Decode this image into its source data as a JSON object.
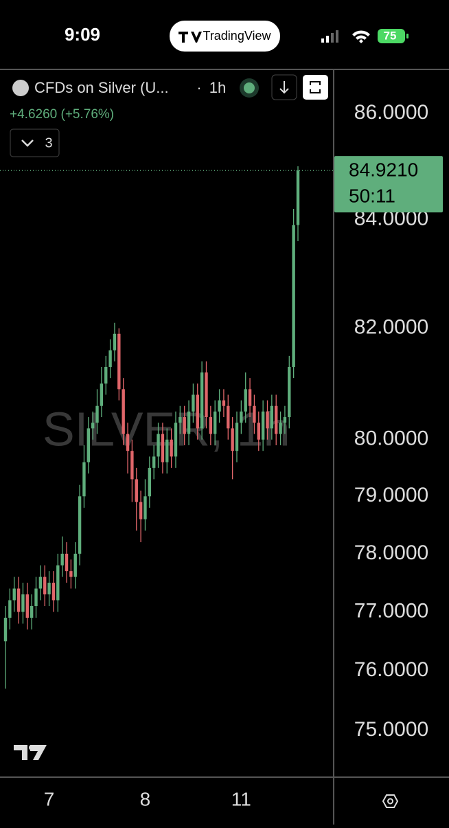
{
  "status_bar": {
    "time": "9:09",
    "app": "TradingView",
    "battery": "75"
  },
  "header": {
    "symbol": "CFDs on Silver (U...",
    "separator": "·",
    "interval": "1h",
    "change": "+4.6260 (+5.76%)",
    "indicators_count": "3"
  },
  "chart_data": {
    "type": "candlestick",
    "watermark": "SILVER, 1h",
    "categories": [
      null,
      null,
      null,
      null,
      null,
      null,
      null,
      null,
      null,
      null,
      "7",
      null,
      null,
      null,
      null,
      null,
      null,
      null,
      null,
      null,
      null,
      null,
      null,
      null,
      null,
      null,
      null,
      null,
      null,
      null,
      null,
      null,
      "8",
      null,
      null,
      null,
      null,
      null,
      null,
      null,
      null,
      null,
      null,
      null,
      null,
      null,
      null,
      null,
      null,
      null,
      null,
      null,
      null,
      null,
      "11",
      null,
      null,
      null,
      null,
      null,
      null,
      null,
      null,
      null,
      null,
      null,
      null,
      null
    ],
    "open": [
      76.5,
      76.9,
      77.2,
      77.4,
      77.0,
      77.3,
      76.9,
      77.1,
      77.4,
      77.6,
      77.3,
      77.5,
      77.2,
      77.8,
      78.0,
      77.7,
      77.6,
      78.0,
      79.0,
      79.6,
      80.2,
      80.3,
      80.6,
      81.0,
      81.3,
      81.6,
      81.9,
      80.9,
      80.1,
      79.8,
      79.3,
      78.9,
      78.6,
      79.0,
      79.5,
      79.7,
      80.1,
      79.6,
      80.0,
      79.7,
      80.3,
      80.4,
      80.1,
      80.5,
      80.8,
      80.2,
      81.2,
      80.4,
      80.1,
      80.5,
      80.7,
      80.6,
      80.2,
      79.8,
      80.3,
      80.5,
      80.9,
      80.6,
      80.3,
      80.0,
      80.5,
      80.2,
      80.6,
      80.1,
      80.3,
      80.4,
      81.3,
      83.9
    ],
    "high": [
      77.1,
      77.4,
      77.6,
      77.6,
      77.5,
      77.5,
      77.3,
      77.6,
      77.8,
      77.8,
      77.7,
      77.7,
      78.0,
      78.3,
      78.2,
      77.9,
      78.2,
      79.2,
      79.9,
      80.4,
      80.5,
      80.9,
      81.3,
      81.5,
      81.8,
      82.1,
      82.0,
      81.1,
      80.3,
      80.0,
      79.5,
      79.1,
      79.3,
      79.7,
      79.9,
      80.3,
      80.3,
      80.2,
      80.2,
      80.5,
      80.6,
      80.6,
      80.7,
      81.0,
      81.0,
      81.4,
      81.4,
      80.6,
      80.7,
      80.9,
      80.9,
      80.8,
      80.4,
      80.5,
      80.7,
      81.2,
      81.1,
      80.8,
      80.5,
      80.7,
      80.7,
      80.8,
      80.8,
      80.5,
      80.6,
      81.5,
      84.2,
      85.0
    ],
    "low": [
      75.7,
      76.7,
      77.0,
      76.8,
      76.8,
      76.7,
      76.7,
      76.9,
      77.2,
      77.1,
      77.1,
      77.0,
      77.0,
      77.6,
      77.5,
      77.4,
      77.4,
      77.8,
      78.8,
      79.4,
      80.0,
      80.1,
      80.4,
      80.8,
      81.1,
      81.4,
      80.7,
      79.9,
      79.4,
      78.9,
      78.4,
      78.2,
      78.4,
      78.8,
      79.3,
      79.5,
      79.4,
      79.4,
      79.5,
      79.5,
      80.1,
      79.9,
      79.9,
      80.3,
      80.0,
      80.0,
      80.2,
      79.9,
      79.9,
      80.3,
      80.4,
      80.0,
      79.3,
      79.6,
      80.1,
      80.3,
      80.4,
      80.1,
      79.8,
      79.8,
      80.0,
      80.0,
      79.9,
      79.9,
      80.1,
      80.2,
      81.1,
      83.6
    ],
    "close": [
      76.9,
      77.2,
      77.4,
      77.0,
      77.3,
      76.9,
      77.1,
      77.4,
      77.6,
      77.3,
      77.5,
      77.2,
      77.8,
      78.0,
      77.7,
      77.6,
      78.0,
      79.0,
      79.6,
      80.2,
      80.3,
      80.6,
      81.0,
      81.3,
      81.6,
      81.9,
      80.9,
      80.1,
      79.8,
      79.3,
      78.9,
      78.6,
      79.0,
      79.5,
      79.7,
      80.1,
      79.6,
      80.0,
      79.7,
      80.3,
      80.4,
      80.1,
      80.5,
      80.8,
      80.2,
      81.2,
      80.4,
      80.1,
      80.5,
      80.7,
      80.6,
      80.2,
      79.8,
      80.3,
      80.5,
      80.9,
      80.6,
      80.3,
      80.0,
      80.5,
      80.2,
      80.6,
      80.1,
      80.3,
      80.4,
      81.3,
      83.9,
      84.921
    ],
    "up_color": "#5fae7c",
    "down_color": "#e0666a",
    "log_scale": true,
    "grid": false,
    "ylim": [
      74.24,
      86.86
    ],
    "yticks": [
      {
        "value": 75,
        "label": "75.0000"
      },
      {
        "value": 76,
        "label": "76.0000"
      },
      {
        "value": 77,
        "label": "77.0000"
      },
      {
        "value": 78,
        "label": "78.0000"
      },
      {
        "value": 79,
        "label": "79.0000"
      },
      {
        "value": 80,
        "label": "80.0000"
      },
      {
        "value": 82,
        "label": "82.0000"
      },
      {
        "value": 84,
        "label": "84.0000"
      },
      {
        "value": 86,
        "label": "86.0000"
      }
    ],
    "last_price_label": "84.9210",
    "countdown": "50:11"
  }
}
